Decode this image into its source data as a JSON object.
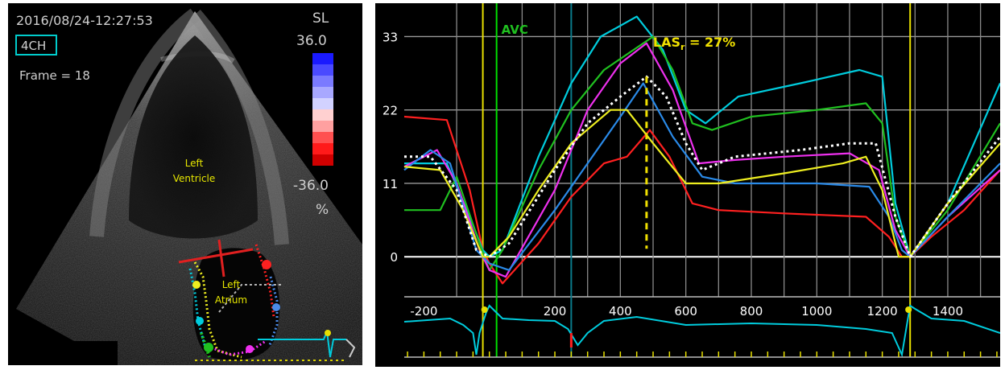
{
  "echo": {
    "timestamp": "2016/08/24-12:27:53",
    "view_label": "4CH",
    "frame": "Frame = 18",
    "scale_title": "SL",
    "scale_max": "36.0",
    "scale_min": "-36.0",
    "scale_unit": "%",
    "lv_label_1": "Left",
    "lv_label_2": "Ventricle",
    "la_label_1": "Left",
    "la_label_2": "Atrium",
    "scale_colors": [
      "#1a1aff",
      "#4a4aff",
      "#7a7aff",
      "#a8a8ff",
      "#d2d2ff",
      "#ffd0d0",
      "#ffa0a0",
      "#ff5050",
      "#ff1a1a",
      "#d00000"
    ]
  },
  "chart_data": {
    "type": "line",
    "avc_label": "AVC",
    "annotation": {
      "prefix": "LAS",
      "subscript": "r",
      "suffix": " = 27%",
      "x": 480,
      "y": 27
    },
    "xlim": [
      -260,
      1560
    ],
    "ylim": [
      -6,
      38
    ],
    "x_ticks": [
      -200,
      200,
      400,
      600,
      800,
      1000,
      1200,
      1400
    ],
    "y_ticks": [
      0,
      11,
      22,
      33
    ],
    "x_gridlines": [
      -100,
      100,
      200,
      300,
      400,
      500,
      600,
      700,
      800,
      900,
      1000,
      1100,
      1200,
      1300,
      1400,
      1500
    ],
    "markers": [
      {
        "x": -20,
        "color": "#e8e000"
      },
      {
        "x": 22,
        "color": "#00e000"
      },
      {
        "x": 250,
        "color": "#0a7a8a"
      },
      {
        "x": 1285,
        "color": "#e8e000"
      }
    ],
    "series": [
      {
        "color": "#ff2020",
        "values": [
          [
            -260,
            21
          ],
          [
            -130,
            20.5
          ],
          [
            -60,
            10
          ],
          [
            -20,
            1
          ],
          [
            0,
            -1
          ],
          [
            40,
            -4
          ],
          [
            150,
            2
          ],
          [
            250,
            9
          ],
          [
            350,
            14
          ],
          [
            420,
            15
          ],
          [
            490,
            19
          ],
          [
            550,
            15
          ],
          [
            620,
            8
          ],
          [
            700,
            7
          ],
          [
            900,
            6.5
          ],
          [
            1150,
            6
          ],
          [
            1220,
            3
          ],
          [
            1260,
            0
          ],
          [
            1285,
            0
          ],
          [
            1350,
            3
          ],
          [
            1450,
            7
          ],
          [
            1560,
            13
          ]
        ]
      },
      {
        "color": "#00ccdd",
        "values": [
          [
            -260,
            14
          ],
          [
            -130,
            14
          ],
          [
            -60,
            6
          ],
          [
            -20,
            1
          ],
          [
            0,
            0
          ],
          [
            40,
            1
          ],
          [
            150,
            15
          ],
          [
            250,
            26
          ],
          [
            340,
            33
          ],
          [
            450,
            36
          ],
          [
            530,
            31
          ],
          [
            600,
            22
          ],
          [
            660,
            20
          ],
          [
            760,
            24
          ],
          [
            950,
            26
          ],
          [
            1130,
            28
          ],
          [
            1200,
            27
          ],
          [
            1240,
            8
          ],
          [
            1285,
            0
          ],
          [
            1400,
            8
          ],
          [
            1560,
            26
          ]
        ]
      },
      {
        "color": "#20c020",
        "values": [
          [
            -260,
            7
          ],
          [
            -150,
            7
          ],
          [
            -100,
            12
          ],
          [
            -30,
            2
          ],
          [
            0,
            -2
          ],
          [
            40,
            1
          ],
          [
            150,
            13
          ],
          [
            250,
            22
          ],
          [
            350,
            28
          ],
          [
            500,
            33
          ],
          [
            560,
            28
          ],
          [
            620,
            20
          ],
          [
            680,
            19
          ],
          [
            800,
            21
          ],
          [
            1000,
            22
          ],
          [
            1150,
            23
          ],
          [
            1200,
            20
          ],
          [
            1240,
            6
          ],
          [
            1285,
            0
          ],
          [
            1400,
            7
          ],
          [
            1560,
            20
          ]
        ]
      },
      {
        "color": "#ee30ee",
        "values": [
          [
            -260,
            13.5
          ],
          [
            -160,
            16
          ],
          [
            -100,
            11
          ],
          [
            -30,
            1
          ],
          [
            0,
            -2
          ],
          [
            50,
            -3
          ],
          [
            200,
            10
          ],
          [
            300,
            22
          ],
          [
            400,
            29
          ],
          [
            480,
            32
          ],
          [
            560,
            25
          ],
          [
            640,
            14
          ],
          [
            750,
            14.5
          ],
          [
            900,
            15
          ],
          [
            1100,
            15.5
          ],
          [
            1190,
            13
          ],
          [
            1240,
            4
          ],
          [
            1285,
            0
          ],
          [
            1400,
            6
          ],
          [
            1560,
            13
          ]
        ]
      },
      {
        "color": "#2a8ae8",
        "values": [
          [
            -260,
            13
          ],
          [
            -180,
            16
          ],
          [
            -120,
            14
          ],
          [
            -40,
            1
          ],
          [
            0,
            -1
          ],
          [
            60,
            -2
          ],
          [
            200,
            7
          ],
          [
            300,
            14
          ],
          [
            400,
            21
          ],
          [
            470,
            26
          ],
          [
            560,
            18
          ],
          [
            650,
            12
          ],
          [
            750,
            11
          ],
          [
            1000,
            11
          ],
          [
            1160,
            10.5
          ],
          [
            1220,
            6
          ],
          [
            1260,
            1
          ],
          [
            1285,
            0
          ],
          [
            1400,
            6
          ],
          [
            1560,
            14
          ]
        ]
      },
      {
        "color": "#eeee20",
        "values": [
          [
            -260,
            13.5
          ],
          [
            -150,
            13
          ],
          [
            -80,
            7
          ],
          [
            -20,
            0
          ],
          [
            0,
            0
          ],
          [
            60,
            3
          ],
          [
            150,
            10
          ],
          [
            250,
            17
          ],
          [
            370,
            22
          ],
          [
            420,
            22
          ],
          [
            500,
            17
          ],
          [
            600,
            11
          ],
          [
            700,
            11
          ],
          [
            900,
            12.5
          ],
          [
            1080,
            14
          ],
          [
            1150,
            15
          ],
          [
            1200,
            10
          ],
          [
            1250,
            0
          ],
          [
            1285,
            0
          ],
          [
            1400,
            8
          ],
          [
            1560,
            17
          ]
        ]
      },
      {
        "color": "#ffffff",
        "dash": "3,4",
        "values": [
          [
            -260,
            15
          ],
          [
            -180,
            15
          ],
          [
            -100,
            10
          ],
          [
            -40,
            1
          ],
          [
            0,
            0
          ],
          [
            60,
            2
          ],
          [
            200,
            13
          ],
          [
            300,
            20
          ],
          [
            400,
            24
          ],
          [
            480,
            27
          ],
          [
            540,
            24
          ],
          [
            600,
            17
          ],
          [
            650,
            13
          ],
          [
            750,
            15
          ],
          [
            950,
            16
          ],
          [
            1100,
            17
          ],
          [
            1180,
            17
          ],
          [
            1240,
            6
          ],
          [
            1285,
            0
          ],
          [
            1400,
            8
          ],
          [
            1560,
            18
          ]
        ]
      }
    ]
  }
}
